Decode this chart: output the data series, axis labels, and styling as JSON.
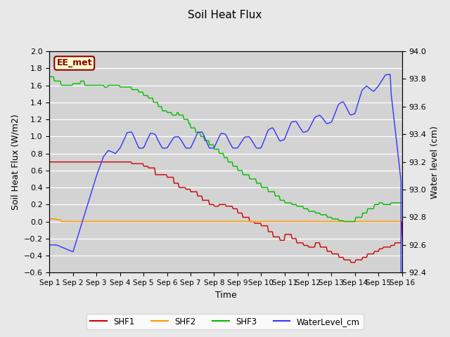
{
  "title": "Soil Heat Flux",
  "ylabel_left": "Soil Heat Flux (W/m2)",
  "ylabel_right": "Water level (cm)",
  "xlabel": "Time",
  "ylim_left": [
    -0.6,
    2.0
  ],
  "ylim_right": [
    92.4,
    94.0
  ],
  "background_color": "#e8e8e8",
  "plot_bg_color": "#d3d3d3",
  "annotation_text": "EE_met",
  "annotation_facecolor": "#ffffcc",
  "annotation_edgecolor": "#8b0000",
  "annotation_textcolor": "#8b0000",
  "series_colors": {
    "SHF1": "#cc0000",
    "SHF2": "#ff9900",
    "SHF3": "#00bb00",
    "WaterLevel_cm": "#3333ff"
  },
  "x_tick_labels": [
    "Sep 1",
    "Sep 2",
    "Sep 3",
    "Sep 4",
    "Sep 5",
    "Sep 6",
    "Sep 7",
    "Sep 8",
    "Sep 9",
    "Sep 10",
    "Sep 11",
    "Sep 12",
    "Sep 13",
    "Sep 14",
    "Sep 15",
    "Sep 16"
  ]
}
